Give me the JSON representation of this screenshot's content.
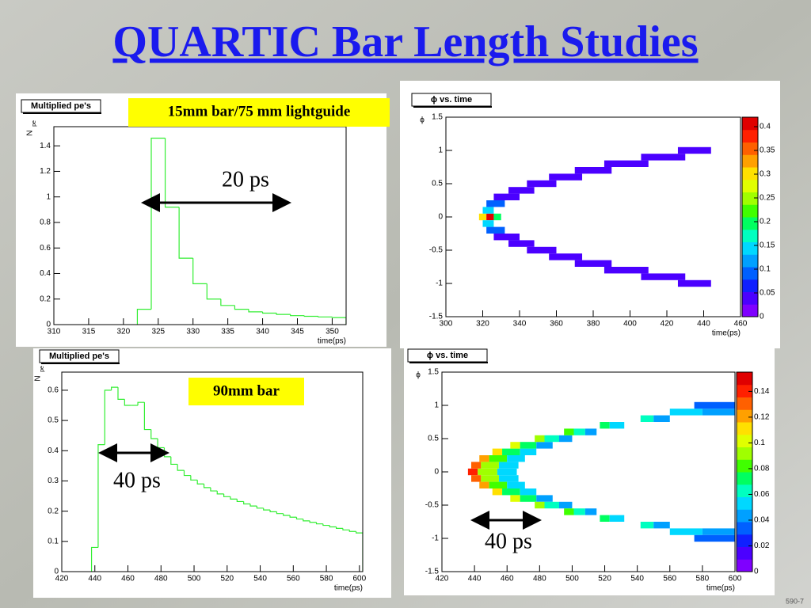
{
  "title": "QUARTIC Bar Length Studies",
  "footer": "590-7",
  "annotations": [
    "15mm bar/75 mm lightguide",
    "20 ps",
    "90mm bar",
    "40 ps",
    "40 ps"
  ],
  "chart_data": [
    {
      "type": "histogram",
      "title": "Multiplied pe's",
      "xlabel": "time(ps)",
      "ylabel": {
        "base": "N",
        "sub": "pe"
      },
      "color": "#33ee33",
      "bins": [
        322,
        324,
        326,
        328,
        330,
        332,
        334,
        336,
        338,
        340,
        342,
        344,
        346,
        348,
        350,
        352
      ],
      "values": [
        0.12,
        1.46,
        0.92,
        0.52,
        0.32,
        0.2,
        0.15,
        0.12,
        0.1,
        0.09,
        0.08,
        0.07,
        0.065,
        0.06,
        0.055
      ],
      "xlim": [
        310,
        352
      ],
      "xticks": [
        310,
        315,
        320,
        325,
        330,
        335,
        340,
        345,
        350
      ],
      "ylim": [
        0,
        1.55
      ],
      "yticks": [
        0,
        0.2,
        0.4,
        0.6,
        0.8,
        1,
        1.2,
        1.4
      ]
    },
    {
      "type": "heatmap",
      "title": "ϕ vs. time",
      "xlabel": "time(ps)",
      "ylabel": "ϕ",
      "ybin": 0.1,
      "xlim": [
        300,
        460
      ],
      "xticks": [
        300,
        320,
        340,
        360,
        380,
        400,
        420,
        440,
        460
      ],
      "ylim": [
        -1.5,
        1.5
      ],
      "yticks": [
        -1.5,
        -1,
        -0.5,
        0,
        0.5,
        1,
        1.5
      ],
      "zlim": [
        0,
        0.42
      ],
      "zticks": [
        0,
        0.05,
        0.1,
        0.15,
        0.2,
        0.25,
        0.3,
        0.35,
        0.4
      ],
      "palette": [
        "#7f00ff",
        "#4b00ff",
        "#1020ff",
        "#0060ff",
        "#00a0ff",
        "#00d8ff",
        "#00ffc0",
        "#00ff60",
        "#40ff00",
        "#a0ff00",
        "#e0ff00",
        "#ffe000",
        "#ffa000",
        "#ff6000",
        "#ff2000",
        "#e00000"
      ],
      "cells": [
        {
          "y": 0,
          "x0": 318,
          "x1": 322,
          "v": 0.3
        },
        {
          "y": 0,
          "x0": 322,
          "x1": 326,
          "v": 0.4
        },
        {
          "y": 0,
          "x0": 326,
          "x1": 330,
          "v": 0.2
        },
        {
          "y": 0.1,
          "x0": 320,
          "x1": 326,
          "v": 0.15
        },
        {
          "y": 0.2,
          "x0": 322,
          "x1": 332,
          "v": 0.08
        },
        {
          "y": 0.3,
          "x0": 326,
          "x1": 340,
          "v": 0.05
        },
        {
          "y": 0.4,
          "x0": 334,
          "x1": 348,
          "v": 0.04
        },
        {
          "y": 0.5,
          "x0": 344,
          "x1": 360,
          "v": 0.04
        },
        {
          "y": 0.6,
          "x0": 356,
          "x1": 374,
          "v": 0.03
        },
        {
          "y": 0.7,
          "x0": 370,
          "x1": 390,
          "v": 0.03
        },
        {
          "y": 0.8,
          "x0": 386,
          "x1": 410,
          "v": 0.03
        },
        {
          "y": 0.9,
          "x0": 406,
          "x1": 430,
          "v": 0.03
        },
        {
          "y": 1,
          "x0": 426,
          "x1": 444,
          "v": 0.03
        },
        {
          "y": -0.1,
          "x0": 320,
          "x1": 326,
          "v": 0.15
        },
        {
          "y": -0.2,
          "x0": 322,
          "x1": 332,
          "v": 0.08
        },
        {
          "y": -0.3,
          "x0": 326,
          "x1": 340,
          "v": 0.05
        },
        {
          "y": -0.4,
          "x0": 334,
          "x1": 348,
          "v": 0.04
        },
        {
          "y": -0.5,
          "x0": 344,
          "x1": 360,
          "v": 0.04
        },
        {
          "y": -0.6,
          "x0": 356,
          "x1": 374,
          "v": 0.03
        },
        {
          "y": -0.7,
          "x0": 370,
          "x1": 390,
          "v": 0.03
        },
        {
          "y": -0.8,
          "x0": 386,
          "x1": 410,
          "v": 0.03
        },
        {
          "y": -0.9,
          "x0": 406,
          "x1": 430,
          "v": 0.03
        },
        {
          "y": -1,
          "x0": 426,
          "x1": 444,
          "v": 0.03
        }
      ]
    },
    {
      "type": "histogram",
      "title": "Multiplied pe's",
      "xlabel": "time(ps)",
      "ylabel": {
        "base": "N",
        "sub": "pe"
      },
      "color": "#33ee33",
      "bins": [
        438,
        442,
        446,
        450,
        454,
        458,
        462,
        466,
        470,
        474,
        478,
        482,
        486,
        490,
        494,
        498,
        502,
        506,
        510,
        514,
        518,
        522,
        526,
        530,
        534,
        538,
        542,
        546,
        550,
        554,
        558,
        562,
        566,
        570,
        574,
        578,
        582,
        586,
        590,
        594,
        598,
        602
      ],
      "values": [
        0.08,
        0.42,
        0.6,
        0.61,
        0.57,
        0.55,
        0.55,
        0.56,
        0.47,
        0.44,
        0.41,
        0.38,
        0.355,
        0.335,
        0.318,
        0.303,
        0.29,
        0.278,
        0.267,
        0.257,
        0.248,
        0.24,
        0.232,
        0.224,
        0.217,
        0.21,
        0.204,
        0.198,
        0.192,
        0.186,
        0.18,
        0.174,
        0.168,
        0.163,
        0.158,
        0.153,
        0.148,
        0.143,
        0.138,
        0.133,
        0.128
      ],
      "xlim": [
        420,
        602
      ],
      "xticks": [
        420,
        440,
        460,
        480,
        500,
        520,
        540,
        560,
        580,
        600
      ],
      "ylim": [
        0,
        0.66
      ],
      "yticks": [
        0,
        0.1,
        0.2,
        0.3,
        0.4,
        0.5,
        0.6
      ]
    },
    {
      "type": "heatmap",
      "title": "ϕ vs. time",
      "xlabel": "time(ps)",
      "ylabel": "ϕ",
      "ybin": 0.1,
      "xlim": [
        420,
        600
      ],
      "xticks": [
        420,
        440,
        460,
        480,
        500,
        520,
        540,
        560,
        580,
        600
      ],
      "ylim": [
        -1.5,
        1.5
      ],
      "yticks": [
        -1.5,
        -1,
        -0.5,
        0,
        0.5,
        1,
        1.5
      ],
      "zlim": [
        0,
        0.155
      ],
      "zticks": [
        0,
        0.02,
        0.04,
        0.06,
        0.08,
        0.1,
        0.12,
        0.14
      ],
      "palette": [
        "#7f00ff",
        "#4b00ff",
        "#1020ff",
        "#0060ff",
        "#00a0ff",
        "#00d8ff",
        "#00ffc0",
        "#00ff60",
        "#40ff00",
        "#a0ff00",
        "#e0ff00",
        "#ffe000",
        "#ffa000",
        "#ff6000",
        "#ff2000",
        "#e00000"
      ],
      "cells": [
        {
          "y": 0,
          "x0": 436,
          "x1": 442,
          "v": 0.14
        },
        {
          "y": 0,
          "x0": 442,
          "x1": 454,
          "v": 0.09
        },
        {
          "y": 0,
          "x0": 454,
          "x1": 466,
          "v": 0.05
        },
        {
          "y": 0.1,
          "x0": 438,
          "x1": 444,
          "v": 0.13
        },
        {
          "y": 0.1,
          "x0": 444,
          "x1": 455,
          "v": 0.09
        },
        {
          "y": 0.1,
          "x0": 455,
          "x1": 467,
          "v": 0.05
        },
        {
          "y": 0.2,
          "x0": 443,
          "x1": 449,
          "v": 0.12
        },
        {
          "y": 0.2,
          "x0": 449,
          "x1": 460,
          "v": 0.08
        },
        {
          "y": 0.2,
          "x0": 460,
          "x1": 471,
          "v": 0.05
        },
        {
          "y": 0.3,
          "x0": 451,
          "x1": 457,
          "v": 0.11
        },
        {
          "y": 0.3,
          "x0": 457,
          "x1": 468,
          "v": 0.07
        },
        {
          "y": 0.3,
          "x0": 468,
          "x1": 478,
          "v": 0.05
        },
        {
          "y": 0.4,
          "x0": 462,
          "x1": 468,
          "v": 0.1
        },
        {
          "y": 0.4,
          "x0": 468,
          "x1": 478,
          "v": 0.07
        },
        {
          "y": 0.4,
          "x0": 478,
          "x1": 488,
          "v": 0.04
        },
        {
          "y": 0.5,
          "x0": 477,
          "x1": 483,
          "v": 0.09
        },
        {
          "y": 0.5,
          "x0": 483,
          "x1": 492,
          "v": 0.06
        },
        {
          "y": 0.5,
          "x0": 492,
          "x1": 500,
          "v": 0.04
        },
        {
          "y": 0.6,
          "x0": 495,
          "x1": 501,
          "v": 0.08
        },
        {
          "y": 0.6,
          "x0": 501,
          "x1": 508,
          "v": 0.06
        },
        {
          "y": 0.6,
          "x0": 508,
          "x1": 515,
          "v": 0.04
        },
        {
          "y": 0.7,
          "x0": 517,
          "x1": 523,
          "v": 0.07
        },
        {
          "y": 0.7,
          "x0": 523,
          "x1": 532,
          "v": 0.05
        },
        {
          "y": 0.8,
          "x0": 542,
          "x1": 550,
          "v": 0.06
        },
        {
          "y": 0.8,
          "x0": 550,
          "x1": 560,
          "v": 0.04
        },
        {
          "y": 0.9,
          "x0": 560,
          "x1": 580,
          "v": 0.05
        },
        {
          "y": 0.9,
          "x0": 580,
          "x1": 600,
          "v": 0.04
        },
        {
          "y": 1,
          "x0": 575,
          "x1": 600,
          "v": 0.03
        },
        {
          "y": -0.1,
          "x0": 438,
          "x1": 444,
          "v": 0.13
        },
        {
          "y": -0.1,
          "x0": 444,
          "x1": 455,
          "v": 0.09
        },
        {
          "y": -0.1,
          "x0": 455,
          "x1": 467,
          "v": 0.05
        },
        {
          "y": -0.2,
          "x0": 443,
          "x1": 449,
          "v": 0.12
        },
        {
          "y": -0.2,
          "x0": 449,
          "x1": 460,
          "v": 0.08
        },
        {
          "y": -0.2,
          "x0": 460,
          "x1": 471,
          "v": 0.05
        },
        {
          "y": -0.3,
          "x0": 451,
          "x1": 457,
          "v": 0.11
        },
        {
          "y": -0.3,
          "x0": 457,
          "x1": 468,
          "v": 0.07
        },
        {
          "y": -0.3,
          "x0": 468,
          "x1": 478,
          "v": 0.05
        },
        {
          "y": -0.4,
          "x0": 462,
          "x1": 468,
          "v": 0.1
        },
        {
          "y": -0.4,
          "x0": 468,
          "x1": 478,
          "v": 0.07
        },
        {
          "y": -0.4,
          "x0": 478,
          "x1": 488,
          "v": 0.04
        },
        {
          "y": -0.5,
          "x0": 477,
          "x1": 483,
          "v": 0.09
        },
        {
          "y": -0.5,
          "x0": 483,
          "x1": 492,
          "v": 0.06
        },
        {
          "y": -0.5,
          "x0": 492,
          "x1": 500,
          "v": 0.04
        },
        {
          "y": -0.6,
          "x0": 495,
          "x1": 501,
          "v": 0.08
        },
        {
          "y": -0.6,
          "x0": 501,
          "x1": 508,
          "v": 0.06
        },
        {
          "y": -0.6,
          "x0": 508,
          "x1": 515,
          "v": 0.04
        },
        {
          "y": -0.7,
          "x0": 517,
          "x1": 523,
          "v": 0.07
        },
        {
          "y": -0.7,
          "x0": 523,
          "x1": 532,
          "v": 0.05
        },
        {
          "y": -0.8,
          "x0": 542,
          "x1": 550,
          "v": 0.06
        },
        {
          "y": -0.8,
          "x0": 550,
          "x1": 560,
          "v": 0.04
        },
        {
          "y": -0.9,
          "x0": 560,
          "x1": 580,
          "v": 0.05
        },
        {
          "y": -0.9,
          "x0": 580,
          "x1": 600,
          "v": 0.04
        },
        {
          "y": -1,
          "x0": 575,
          "x1": 600,
          "v": 0.03
        }
      ]
    }
  ]
}
